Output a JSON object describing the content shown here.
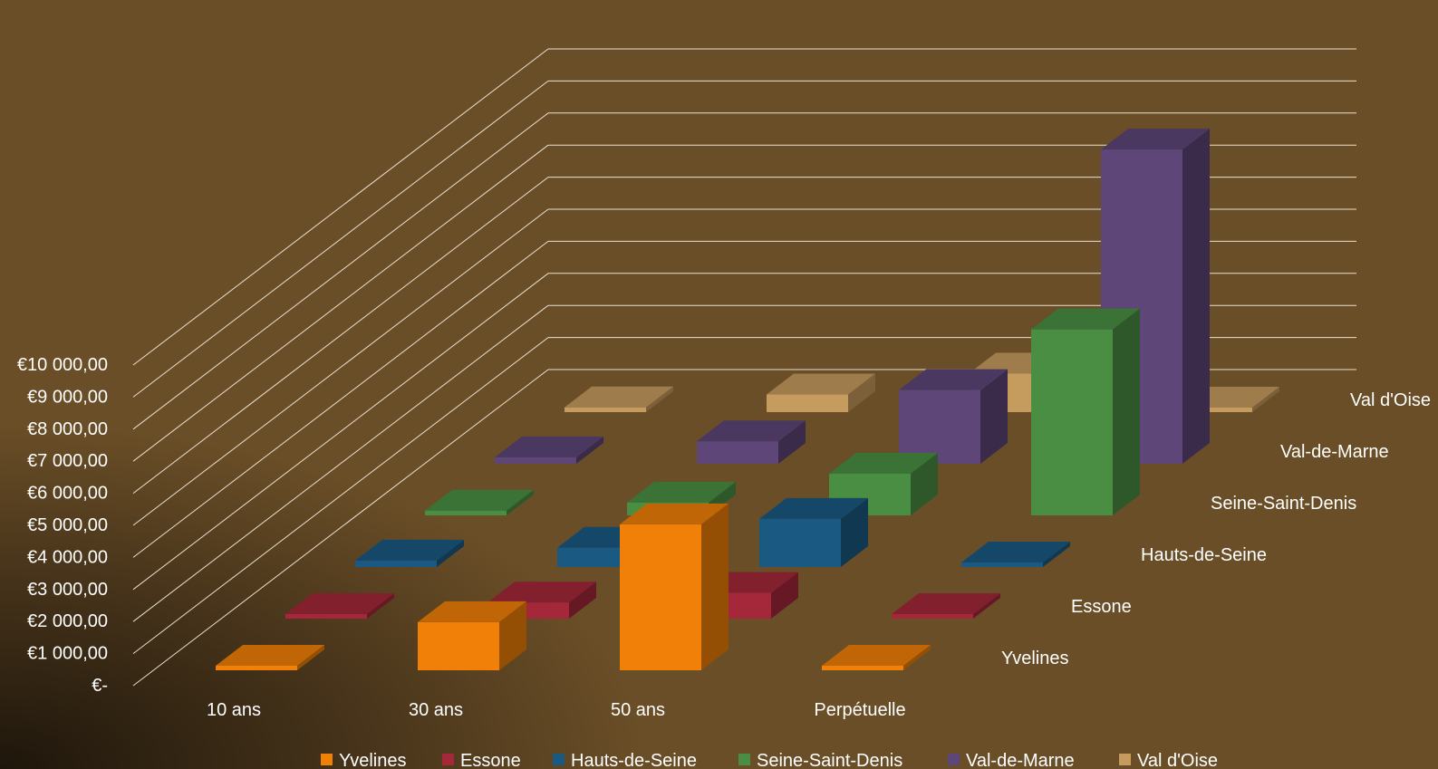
{
  "chart_data": {
    "type": "bar",
    "subtype": "3d-column",
    "title": "",
    "xlabel": "",
    "ylabel": "",
    "categories": [
      "10 ans",
      "30 ans",
      "50 ans",
      "Perpétuelle"
    ],
    "series": [
      {
        "name": "Yvelines",
        "color": "#F08008",
        "values": [
          0,
          1500,
          4550,
          0
        ]
      },
      {
        "name": "Essone",
        "color": "#A4283A",
        "values": [
          0,
          500,
          800,
          0
        ]
      },
      {
        "name": "Hauts-de-Seine",
        "color": "#1A5A82",
        "values": [
          200,
          600,
          1500,
          0
        ]
      },
      {
        "name": "Seine-Saint-Denis",
        "color": "#4A8E44",
        "values": [
          150,
          400,
          1300,
          5800
        ]
      },
      {
        "name": "Val-de-Marne",
        "color": "#5E4678",
        "values": [
          200,
          700,
          2300,
          9800
        ]
      },
      {
        "name": "Val d'Oise",
        "color": "#C69B5E",
        "values": [
          150,
          550,
          1200,
          0
        ]
      }
    ],
    "ylim": [
      0,
      10000
    ],
    "ytick_labels": [
      "€-",
      "€1 000,00",
      "€2 000,00",
      "€3 000,00",
      "€4 000,00",
      "€5 000,00",
      "€6 000,00",
      "€7 000,00",
      "€8 000,00",
      "€9 000,00",
      "€10 000,00"
    ],
    "grid": true,
    "legend_position": "bottom",
    "background": "#6A4E27"
  }
}
